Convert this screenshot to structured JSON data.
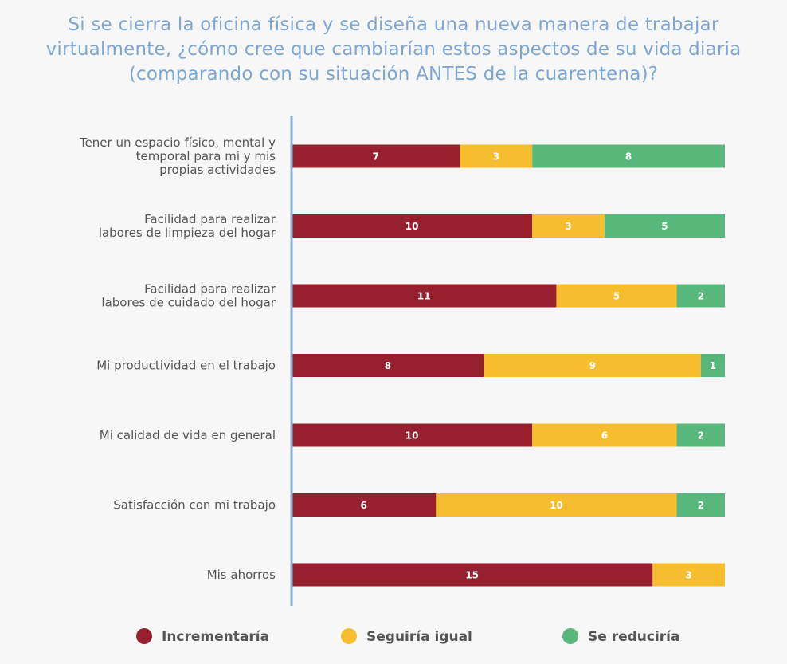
{
  "title": "Si se cierra la oficina física y se diseña una nueva manera de trabajar virtualmente, ¿cómo cree que cambiarían estos aspectos de su vida diaria (comparando con su situación ANTES de la cuarentena)?",
  "colors": {
    "Incrementaría": "#96202d",
    "Seguiría igual": "#f6bd2f",
    "Se reduciría": "#58b77b",
    "axis": "#8bb0dc"
  },
  "chart_data": {
    "type": "bar",
    "orientation": "horizontal",
    "stacked": true,
    "title": "Si se cierra la oficina física y se diseña una nueva manera de trabajar virtualmente, ¿cómo cree que cambiarían estos aspectos de su vida diaria (comparando con su situación ANTES de la cuarentena)?",
    "categories": [
      "Tener un espacio físico, mental y temporal para mi y mis propias actividades",
      "Facilidad para realizar labores de limpieza del hogar",
      "Facilidad para realizar labores de cuidado del hogar",
      "Mi productividad en el trabajo",
      "Mi calidad de vida en general",
      "Satisfacción con mi trabajo",
      "Mis ahorros"
    ],
    "category_lines": [
      [
        "Tener un espacio físico, mental y",
        "temporal para mi y mis",
        "propias actividades"
      ],
      [
        "Facilidad para realizar",
        "labores de limpieza del hogar"
      ],
      [
        "Facilidad para realizar",
        "labores de cuidado del hogar"
      ],
      [
        "Mi productividad en el trabajo"
      ],
      [
        "Mi calidad de vida en general"
      ],
      [
        "Satisfacción con mi trabajo"
      ],
      [
        "Mis ahorros"
      ]
    ],
    "series": [
      {
        "name": "Incrementaría",
        "values": [
          7,
          10,
          11,
          8,
          10,
          6,
          15
        ]
      },
      {
        "name": "Seguiría igual",
        "values": [
          3,
          3,
          5,
          9,
          6,
          10,
          3
        ]
      },
      {
        "name": "Se reduciría",
        "values": [
          8,
          5,
          2,
          1,
          2,
          2,
          0
        ]
      }
    ],
    "xlim": [
      0,
      18
    ],
    "grid": false,
    "legend_position": "bottom"
  }
}
